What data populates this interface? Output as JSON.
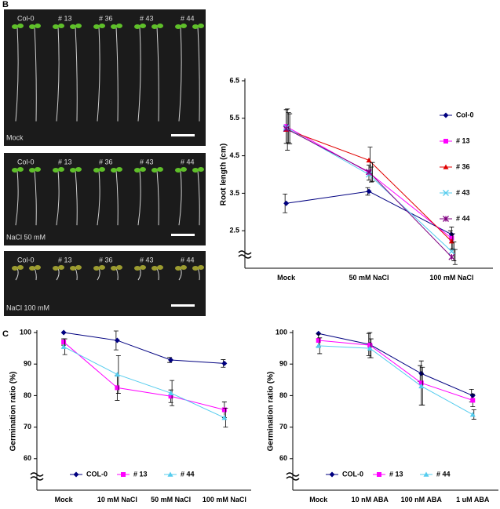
{
  "figure": {
    "panel_labels": [
      "B",
      "C"
    ],
    "photos": [
      {
        "condition": "Mock",
        "genotypes": [
          "Col-0",
          "# 13",
          "# 36",
          "# 43",
          "# 44"
        ]
      },
      {
        "condition": "NaCl 50 mM",
        "genotypes": [
          "Col-0",
          "# 13",
          "# 36",
          "# 43",
          "# 44"
        ]
      },
      {
        "condition": "NaCl 100 mM",
        "genotypes": [
          "Col-0",
          "# 13",
          "# 36",
          "# 43",
          "# 44"
        ]
      }
    ]
  },
  "chart_data": [
    {
      "type": "line",
      "y_label": "Root length (cm)",
      "categories": [
        "Mock",
        "50 mM NaCl",
        "100 mM NaCl"
      ],
      "ylim": [
        1.5,
        6.5
      ],
      "yticks": [
        2.5,
        3.5,
        4.5,
        5.5,
        6.5
      ],
      "legend": "right",
      "series": [
        {
          "name": "Col-0",
          "color": "#000080",
          "marker": "diamond",
          "values": [
            3.23,
            3.55,
            2.4
          ],
          "errors": [
            0.25,
            0.1,
            0.1
          ]
        },
        {
          "name": "# 13",
          "color": "#ff00ff",
          "marker": "square",
          "values": [
            5.28,
            4.05,
            2.3
          ],
          "errors": [
            0.45,
            0.2,
            0.3
          ]
        },
        {
          "name": "# 36",
          "color": "#e00000",
          "marker": "triangle",
          "values": [
            5.2,
            4.38,
            2.22
          ],
          "errors": [
            0.55,
            0.35,
            0.2
          ]
        },
        {
          "name": "# 43",
          "color": "#55ccee",
          "marker": "x",
          "values": [
            5.25,
            4.0,
            1.95
          ],
          "errors": [
            0.4,
            0.2,
            0.25
          ]
        },
        {
          "name": "# 44",
          "color": "#800080",
          "marker": "star",
          "values": [
            5.22,
            4.07,
            1.8
          ],
          "errors": [
            0.4,
            0.25,
            0.2
          ]
        }
      ]
    },
    {
      "type": "line",
      "y_label": "Germination ratio (%)",
      "categories": [
        "Mock",
        "10 mM NaCl",
        "50 mM NaCl",
        "100 mM NaCl"
      ],
      "ylim": [
        50,
        100
      ],
      "yticks": [
        60,
        70,
        80,
        90,
        100
      ],
      "legend": "bottom",
      "series": [
        {
          "name": "COL-0",
          "color": "#000080",
          "marker": "diamond",
          "values": [
            100,
            97.5,
            91.3,
            90.2
          ],
          "errors": [
            0,
            3,
            0.8,
            1.2
          ]
        },
        {
          "name": "# 13",
          "color": "#ff00ff",
          "marker": "square",
          "values": [
            97,
            82.5,
            79.8,
            75.5
          ],
          "errors": [
            1,
            4,
            2,
            2.5
          ]
        },
        {
          "name": "# 44",
          "color": "#55ccee",
          "marker": "triangle",
          "values": [
            95.5,
            86.7,
            80.8,
            73
          ],
          "errors": [
            2.5,
            6,
            4,
            3
          ]
        }
      ]
    },
    {
      "type": "line",
      "y_label": "Germination ratio (%)",
      "categories": [
        "Mock",
        "10 nM ABA",
        "100 nM ABA",
        "1 uM ABA"
      ],
      "ylim": [
        50,
        100
      ],
      "yticks": [
        60,
        70,
        80,
        90,
        100
      ],
      "legend": "bottom",
      "series": [
        {
          "name": "COL-0",
          "color": "#000080",
          "marker": "diamond",
          "values": [
            99.7,
            96.2,
            87,
            80
          ],
          "errors": [
            0,
            3.5,
            2.5,
            2
          ]
        },
        {
          "name": "# 13",
          "color": "#ff00ff",
          "marker": "square",
          "values": [
            97.5,
            96,
            84,
            78.5
          ],
          "errors": [
            2,
            4,
            7,
            2
          ]
        },
        {
          "name": "# 44",
          "color": "#55ccee",
          "marker": "triangle",
          "values": [
            95.8,
            95,
            83,
            74
          ],
          "errors": [
            2.5,
            3,
            6,
            1.5
          ]
        }
      ]
    }
  ]
}
